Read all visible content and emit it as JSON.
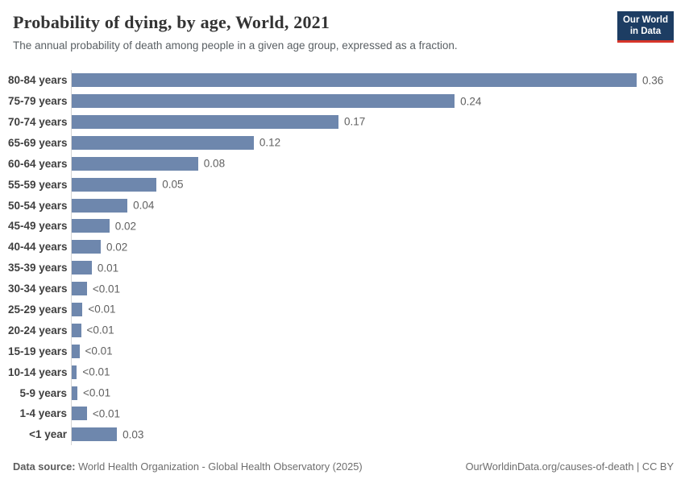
{
  "header": {
    "title": "Probability of dying, by age, World, 2021",
    "subtitle": "The annual probability of death among people in a given age group, expressed as a fraction.",
    "logo": {
      "line1": "Our World",
      "line2": "in Data"
    }
  },
  "chart_data": {
    "type": "bar",
    "orientation": "horizontal",
    "title": "Probability of dying, by age, World, 2021",
    "categories": [
      "80-84 years",
      "75-79 years",
      "70-74 years",
      "65-69 years",
      "60-64 years",
      "55-59 years",
      "50-54 years",
      "45-49 years",
      "40-44 years",
      "35-39 years",
      "30-34 years",
      "25-29 years",
      "20-24 years",
      "15-19 years",
      "10-14 years",
      "5-9 years",
      "1-4 years",
      "<1 year"
    ],
    "values": [
      0.36,
      0.244,
      0.17,
      0.116,
      0.0805,
      0.054,
      0.0355,
      0.024,
      0.0185,
      0.0128,
      0.0097,
      0.0069,
      0.0059,
      0.0049,
      0.0033,
      0.0036,
      0.0097,
      0.0288
    ],
    "value_labels": [
      "0.36",
      "0.24",
      "0.17",
      "0.12",
      "0.08",
      "0.05",
      "0.04",
      "0.02",
      "0.02",
      "0.01",
      "<0.01",
      "<0.01",
      "<0.01",
      "<0.01",
      "<0.01",
      "<0.01",
      "<0.01",
      "0.03"
    ],
    "xlabel": "",
    "ylabel": "",
    "xlim": [
      0,
      0.36
    ],
    "grid": false,
    "legend": "none",
    "bar_color": "#6e87ad"
  },
  "footer": {
    "source_label": "Data source:",
    "source_text": " World Health Organization - Global Health Observatory (2025)",
    "credit": "OurWorldinData.org/causes-of-death | CC BY"
  },
  "colors": {
    "bar": "#6e87ad",
    "axis_line": "#d6d6d6",
    "logo_bg": "#1d3d63",
    "logo_accent": "#d7352a",
    "title_text": "#333333",
    "subtitle_text": "#595f63",
    "value_text": "#616161"
  }
}
